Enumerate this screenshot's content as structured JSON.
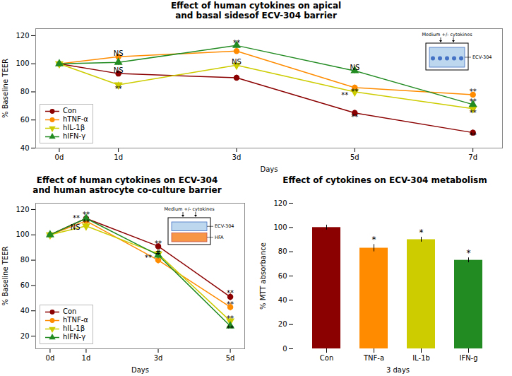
{
  "chart_data": [
    {
      "type": "line",
      "title": "Effect of human cytokines on apical\nand basal sidesof ECV-304 barrier",
      "xlabel": "Days",
      "ylabel": "% Baseline TEER",
      "x": [
        0,
        1,
        3,
        5,
        7
      ],
      "series": [
        {
          "name": "Con",
          "color": "#8B0000",
          "marker": "circle",
          "values": [
            100,
            93,
            90,
            65,
            51
          ],
          "errors": [
            1,
            2,
            2,
            2,
            2
          ]
        },
        {
          "name": "hTNF-α",
          "color": "#FF8C00",
          "marker": "circle",
          "values": [
            100,
            105,
            109,
            83,
            78
          ],
          "errors": [
            1,
            2,
            2,
            2,
            2
          ]
        },
        {
          "name": "hIL-1β",
          "color": "#CCCC00",
          "marker": "triangle-down",
          "values": [
            100,
            85,
            99,
            80,
            68
          ],
          "errors": [
            1,
            2,
            2,
            2,
            2
          ]
        },
        {
          "name": "hIFN-γ",
          "color": "#228B22",
          "marker": "triangle-up",
          "values": [
            100,
            101,
            113,
            95,
            71
          ],
          "errors": [
            1,
            2,
            2,
            2,
            2
          ]
        }
      ],
      "xlim": [
        -0.4,
        7.5
      ],
      "xticks": [
        {
          "value": 0,
          "label": "0d"
        },
        {
          "value": 1,
          "label": "1d"
        },
        {
          "value": 3,
          "label": "3d"
        },
        {
          "value": 5,
          "label": "5d"
        },
        {
          "value": 7,
          "label": "7d"
        }
      ],
      "ylim": [
        40,
        125
      ],
      "yticks": [
        40,
        60,
        80,
        100,
        120
      ],
      "legend": "lower left",
      "annotations": [
        {
          "text": "NS",
          "x": 1,
          "y": 107
        },
        {
          "text": "NS",
          "x": 1,
          "y": 95
        },
        {
          "text": "**",
          "x": 1,
          "y": 82
        },
        {
          "text": "NS",
          "x": 3,
          "y": 101
        },
        {
          "text": "**",
          "x": 3,
          "y": 115
        },
        {
          "text": "NS",
          "x": 5,
          "y": 97
        },
        {
          "text": "**",
          "x": 5,
          "y": 80
        },
        {
          "text": "**",
          "x": 5,
          "y": 77.5
        },
        {
          "text": "**",
          "x": 5,
          "y": 62
        },
        {
          "text": "**",
          "x": 7,
          "y": 80
        },
        {
          "text": "**",
          "x": 7,
          "y": 73
        },
        {
          "text": "**",
          "x": 7,
          "y": 65
        },
        {
          "text": "**",
          "x": 7,
          "y": 49
        },
        {
          "text": "Medium +/- cytokines"
        },
        {
          "text": "ECV-304"
        }
      ]
    },
    {
      "type": "line",
      "title": "Effect of human cytokines on ECV-304\nand human astrocyte co-culture barrier",
      "xlabel": "Days",
      "ylabel": "% Baseline TEER",
      "x": [
        0,
        1,
        3,
        5
      ],
      "series": [
        {
          "name": "Con",
          "color": "#8B0000",
          "marker": "circle",
          "values": [
            100,
            113,
            91,
            51
          ],
          "errors": [
            1,
            2,
            2,
            3
          ]
        },
        {
          "name": "hTNF-α",
          "color": "#FF8C00",
          "marker": "circle",
          "values": [
            100,
            111,
            80,
            43
          ],
          "errors": [
            1,
            2,
            3,
            3
          ]
        },
        {
          "name": "hIL-1β",
          "color": "#CCCC00",
          "marker": "triangle-down",
          "values": [
            100,
            107,
            85,
            32
          ],
          "errors": [
            1,
            2,
            3,
            3
          ]
        },
        {
          "name": "hIFN-γ",
          "color": "#228B22",
          "marker": "triangle-up",
          "values": [
            100,
            113,
            84,
            28
          ],
          "errors": [
            1,
            2,
            3,
            2
          ]
        }
      ],
      "xlim": [
        -0.4,
        5.4
      ],
      "xticks": [
        {
          "value": 0,
          "label": "0d"
        },
        {
          "value": 1,
          "label": "1d"
        },
        {
          "value": 3,
          "label": "3d"
        },
        {
          "value": 5,
          "label": "5d"
        }
      ],
      "ylim": [
        10,
        125
      ],
      "yticks": [
        20,
        40,
        60,
        80,
        100,
        120
      ],
      "legend": "lower left",
      "annotations": [
        {
          "text": "**",
          "x": 1,
          "y": 116
        },
        {
          "text": "**",
          "x": 1,
          "y": 113
        },
        {
          "text": "**",
          "x": 1,
          "y": 110
        },
        {
          "text": "NS",
          "x": 0.7,
          "y": 106
        },
        {
          "text": "**",
          "x": 3,
          "y": 93
        },
        {
          "text": "#",
          "x": 3,
          "y": 86
        },
        {
          "text": "**",
          "x": 3,
          "y": 82
        },
        {
          "text": "**",
          "x": 5,
          "y": 54
        },
        {
          "text": "**",
          "x": 5,
          "y": 45
        },
        {
          "text": "**",
          "x": 5,
          "y": 34
        },
        {
          "text": "**",
          "x": 5,
          "y": 26
        },
        {
          "text": "Medium +/- cytokines"
        },
        {
          "text": "ECV-304"
        },
        {
          "text": "HFA"
        }
      ]
    },
    {
      "type": "bar",
      "title": "Effect of cytokines on ECV-304 metabolism",
      "xlabel": "3 days",
      "ylabel": "% MTT absorbance",
      "categories": [
        "Con",
        "TNF-a",
        "IL-1b",
        "IFN-g"
      ],
      "values": [
        100,
        83,
        90,
        73
      ],
      "errors": [
        2,
        3,
        2,
        2
      ],
      "colors": [
        "#8B0000",
        "#FF8C00",
        "#CCCC00",
        "#228B22"
      ],
      "ylim": [
        0,
        120
      ],
      "yticks": [
        0,
        20,
        40,
        60,
        80,
        100,
        120
      ],
      "annotations": [
        {
          "text": "*",
          "x": "TNF-a",
          "y": 87.5
        },
        {
          "text": "*",
          "x": "IL-1b",
          "y": 93.5
        },
        {
          "text": "*",
          "x": "IFN-g",
          "y": 76.5
        }
      ]
    }
  ]
}
